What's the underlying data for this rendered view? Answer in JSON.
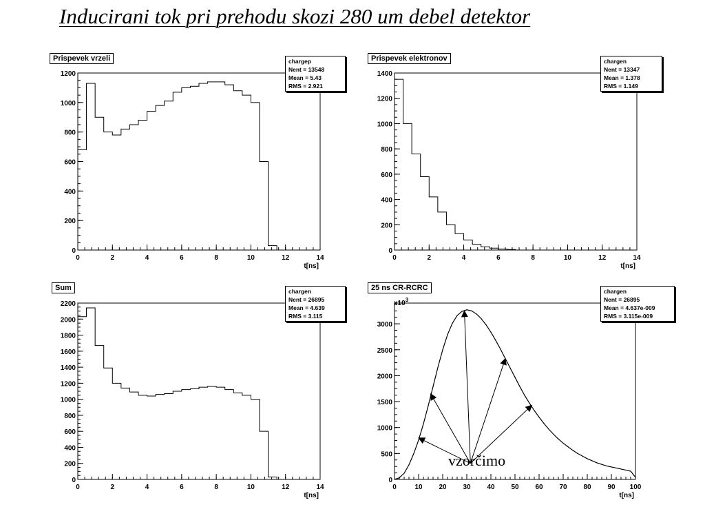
{
  "slide_title": "Inducirani tok pri prehodu skozi 280 um debel detektor",
  "annotation": "vzorčimo",
  "chart_data": [
    {
      "type": "histogram",
      "title": "Prispevek vrzeli",
      "stats": {
        "name": "chargep",
        "entries": "Nent = 13548",
        "mean": "Mean =    5.43",
        "rms": "RMS   =  2.921"
      },
      "xlabel": "t[ns]",
      "xlim": [
        0,
        14
      ],
      "ylim": [
        0,
        1200
      ],
      "xticks": [
        0,
        2,
        4,
        6,
        8,
        10,
        12,
        14
      ],
      "yticks": [
        0,
        200,
        400,
        600,
        800,
        1000,
        1200
      ],
      "bin_width": 0.5,
      "bin_start": 0,
      "values": [
        680,
        1130,
        900,
        800,
        780,
        820,
        850,
        880,
        940,
        980,
        1010,
        1070,
        1100,
        1110,
        1130,
        1140,
        1140,
        1120,
        1080,
        1050,
        1000,
        600,
        30,
        0
      ]
    },
    {
      "type": "histogram",
      "title": "Prispevek elektronov",
      "stats": {
        "name": "chargen",
        "entries": "Nent = 13347",
        "mean": "Mean =  1.378",
        "rms": "RMS   =  1.149"
      },
      "xlabel": "t[ns]",
      "xlim": [
        0,
        14
      ],
      "ylim": [
        0,
        1400
      ],
      "xticks": [
        0,
        2,
        4,
        6,
        8,
        10,
        12,
        14
      ],
      "yticks": [
        0,
        200,
        400,
        600,
        800,
        1000,
        1200,
        1400
      ],
      "bin_width": 0.5,
      "bin_start": 0,
      "values": [
        1350,
        1000,
        760,
        580,
        420,
        300,
        200,
        130,
        80,
        45,
        25,
        15,
        8,
        4,
        0
      ]
    },
    {
      "type": "histogram",
      "title": "Sum",
      "stats": {
        "name": "chargen",
        "entries": "Nent = 26895",
        "mean": "Mean =  4.639",
        "rms": "RMS   =  3.115"
      },
      "xlabel": "t[ns]",
      "xlim": [
        0,
        14
      ],
      "ylim": [
        0,
        2200
      ],
      "xticks": [
        0,
        2,
        4,
        6,
        8,
        10,
        12,
        14
      ],
      "yticks": [
        0,
        200,
        400,
        600,
        800,
        1000,
        1200,
        1400,
        1600,
        1800,
        2000,
        2200
      ],
      "bin_width": 0.5,
      "bin_start": 0,
      "values": [
        2030,
        2140,
        1670,
        1390,
        1200,
        1140,
        1090,
        1050,
        1040,
        1060,
        1070,
        1100,
        1120,
        1130,
        1150,
        1160,
        1150,
        1120,
        1080,
        1050,
        1000,
        600,
        30,
        0
      ]
    },
    {
      "type": "line",
      "title": "25 ns CR-RCRC",
      "stats": {
        "name": "chargen",
        "entries": "Nent = 26895",
        "mean": "Mean = 4.637e-009",
        "rms": "RMS   = 3.115e-009"
      },
      "xlabel": "t[ns]",
      "yscale_label": "x10",
      "yscale_exp": "3",
      "xlim": [
        0,
        100
      ],
      "ylim": [
        0,
        3400
      ],
      "xticks": [
        0,
        10,
        20,
        30,
        40,
        50,
        60,
        70,
        80,
        90,
        100
      ],
      "yticks": [
        0,
        500,
        1000,
        1500,
        2000,
        2500,
        3000
      ],
      "x": [
        0,
        2,
        4,
        6,
        8,
        10,
        12,
        14,
        16,
        18,
        20,
        22,
        24,
        26,
        28,
        30,
        32,
        34,
        36,
        38,
        40,
        42,
        44,
        46,
        48,
        50,
        52,
        54,
        56,
        58,
        60,
        62,
        64,
        66,
        68,
        70,
        72,
        74,
        76,
        78,
        80,
        82,
        84,
        86,
        88,
        90,
        92,
        94,
        96,
        98,
        100
      ],
      "y": [
        0,
        30,
        120,
        280,
        500,
        760,
        1070,
        1420,
        1790,
        2160,
        2500,
        2790,
        3010,
        3160,
        3240,
        3270,
        3250,
        3190,
        3100,
        2980,
        2840,
        2680,
        2510,
        2330,
        2150,
        1970,
        1790,
        1620,
        1470,
        1330,
        1200,
        1080,
        970,
        870,
        780,
        700,
        630,
        560,
        500,
        450,
        400,
        360,
        320,
        290,
        260,
        240,
        220,
        200,
        180,
        160,
        40
      ],
      "arrow_targets": [
        {
          "x": 10,
          "y": 800
        },
        {
          "x": 15,
          "y": 1650
        },
        {
          "x": 29,
          "y": 3250
        },
        {
          "x": 46,
          "y": 2330
        },
        {
          "x": 57,
          "y": 1430
        }
      ]
    }
  ]
}
